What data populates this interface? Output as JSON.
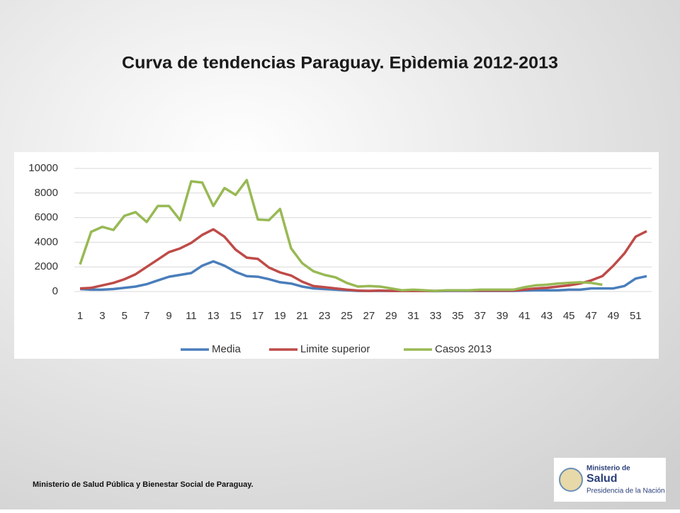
{
  "chart_data": {
    "type": "line",
    "title": "Curva de tendencias Paraguay. Epìdemia 2012-2013",
    "categories": [
      1,
      null,
      3,
      null,
      5,
      null,
      7,
      null,
      9,
      null,
      11,
      null,
      13,
      null,
      15,
      null,
      17,
      null,
      19,
      null,
      21,
      null,
      23,
      null,
      25,
      null,
      27,
      null,
      29,
      null,
      31,
      null,
      33,
      null,
      35,
      null,
      37,
      null,
      39,
      null,
      41,
      null,
      43,
      null,
      45,
      null,
      47,
      null,
      49,
      null,
      51,
      null
    ],
    "series": [
      {
        "name": "Media",
        "color": "#4a7ebb",
        "values": [
          200,
          150,
          150,
          200,
          300,
          400,
          600,
          900,
          1200,
          1350,
          1500,
          2100,
          2450,
          2100,
          1600,
          1250,
          1200,
          1000,
          750,
          650,
          400,
          250,
          200,
          150,
          100,
          50,
          50,
          50,
          50,
          50,
          50,
          50,
          30,
          50,
          50,
          50,
          50,
          50,
          50,
          50,
          80,
          100,
          100,
          100,
          150,
          150,
          250,
          250,
          250,
          450,
          1050,
          1250
        ]
      },
      {
        "name": "Limite superior",
        "color": "#be4b48",
        "values": [
          250,
          300,
          500,
          700,
          1000,
          1400,
          2000,
          2600,
          3200,
          3500,
          3950,
          4600,
          5050,
          4450,
          3400,
          2750,
          2650,
          1950,
          1550,
          1300,
          800,
          450,
          350,
          250,
          150,
          80,
          50,
          80,
          50,
          50,
          50,
          50,
          50,
          80,
          80,
          80,
          80,
          80,
          80,
          80,
          150,
          250,
          300,
          400,
          500,
          650,
          900,
          1250,
          2100,
          3100,
          4450,
          4900
        ]
      },
      {
        "name": "Casos 2013",
        "color": "#98b954",
        "values": [
          2200,
          4850,
          5250,
          5000,
          6150,
          6450,
          5650,
          6950,
          6950,
          5800,
          8950,
          8850,
          6950,
          8400,
          7850,
          9050,
          5850,
          5800,
          6700,
          3500,
          2300,
          1650,
          1350,
          1150,
          700,
          400,
          450,
          400,
          250,
          100,
          150,
          100,
          50,
          100,
          100,
          100,
          150,
          150,
          150,
          150,
          350,
          500,
          550,
          650,
          700,
          750,
          700,
          550,
          null,
          null,
          null,
          null
        ]
      }
    ],
    "ylim": [
      0,
      10000
    ],
    "yticks": [
      0,
      2000,
      4000,
      6000,
      8000,
      10000
    ],
    "grid": true,
    "legend": "bottom"
  },
  "footer": "Ministerio de Salud Pública y Bienestar Social de Paraguay.",
  "logo": {
    "lines": [
      "Ministerio de",
      "Salud",
      "Presidencia de la Nación"
    ]
  }
}
